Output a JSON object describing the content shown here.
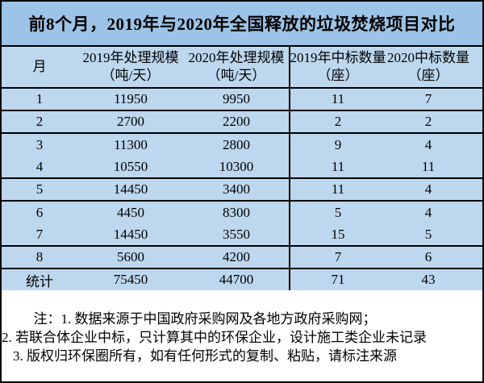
{
  "chart_data": {
    "type": "table",
    "title": "前8个月，2019年与2020年全国释放的垃圾焚烧项目对比",
    "headers": [
      [
        "月",
        ""
      ],
      [
        "2019年处理规模",
        "（吨/天）"
      ],
      [
        "2020年处理规模",
        "（吨/天）"
      ],
      [
        "2019年中标数量",
        "（座）"
      ],
      [
        "2020中标数量",
        "（座）"
      ]
    ],
    "rows": [
      [
        "1",
        "11950",
        "9950",
        "11",
        "7"
      ],
      [
        "2",
        "2700",
        "2200",
        "2",
        "2"
      ],
      [
        "3",
        "11300",
        "2800",
        "9",
        "4"
      ],
      [
        "4",
        "10550",
        "10300",
        "11",
        "11"
      ],
      [
        "5",
        "14450",
        "3400",
        "11",
        "4"
      ],
      [
        "6",
        "4450",
        "8300",
        "5",
        "4"
      ],
      [
        "7",
        "14450",
        "3550",
        "15",
        "5"
      ],
      [
        "8",
        "5600",
        "4200",
        "7",
        "6"
      ]
    ],
    "total_row": [
      "统计",
      "75450",
      "44700",
      "71",
      "43"
    ],
    "notes": [
      "注：1. 数据来源于中国政府采购网及各地方政府采购网；",
      "2. 若联合体企业中标，只计算其中的环保企业，设计施工类企业未记录",
      "3. 版权归环保圈所有，如有任何形式的复制、粘贴，请标注来源"
    ]
  },
  "colors": {
    "title_bg": "#9DC3E6",
    "table_bg": "#BDD7EE",
    "note_bg": "#FFFFFF",
    "border": "#000000",
    "text": "#000000"
  }
}
